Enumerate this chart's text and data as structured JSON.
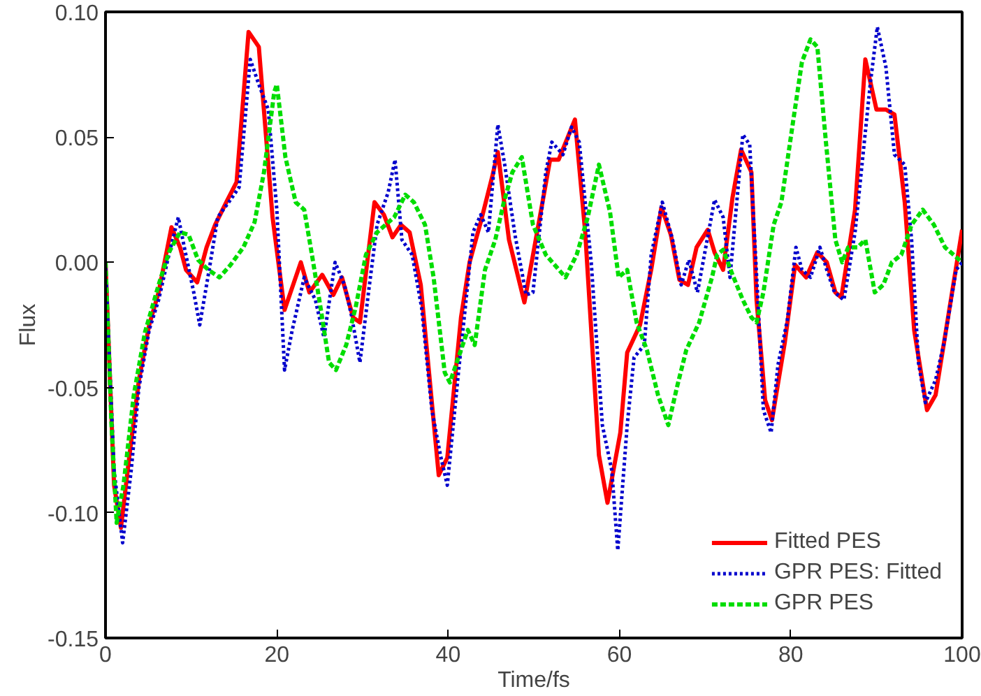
{
  "chart_data": {
    "type": "line",
    "xlabel": "Time/fs",
    "ylabel": "Flux",
    "xlim": [
      0,
      100
    ],
    "xticks": [
      0,
      20,
      40,
      60,
      80,
      100
    ],
    "ylim": [
      -0.15,
      0.1
    ],
    "yticks": [
      {
        "value": -0.15,
        "label": "-0.15"
      },
      {
        "value": -0.1,
        "label": "-0.10"
      },
      {
        "value": -0.05,
        "label": "-0.05"
      },
      {
        "value": 0,
        "label": "0.00"
      },
      {
        "value": 0.05,
        "label": "0.05"
      },
      {
        "value": 0.1,
        "label": "0.10"
      }
    ],
    "grid": false,
    "legend": "bottom right",
    "marker": "none",
    "series": [
      {
        "name": "Fitted PES",
        "color": "#ff0000",
        "line_style": "solid",
        "x": [
          0,
          1.0,
          1.8,
          2.8,
          3.9,
          5.1,
          6.2,
          7.7,
          8.7,
          9.4,
          10.7,
          11.8,
          12.8,
          14.1,
          15.3,
          16.7,
          17.9,
          19.5,
          20.9,
          22.8,
          23.8,
          25.3,
          26.6,
          27.6,
          28.9,
          29.7,
          31.4,
          32.5,
          33.5,
          34.5,
          35.5,
          36.8,
          38.9,
          39.9,
          41.5,
          42.5,
          43.8,
          45.2,
          45.8,
          47.1,
          48.9,
          50.7,
          51.9,
          52.9,
          54.8,
          56.0,
          57.6,
          58.6,
          60.1,
          60.9,
          62.4,
          63.7,
          64.9,
          66.0,
          67.0,
          68.0,
          69.0,
          70.3,
          71.1,
          72.1,
          73.2,
          74.2,
          75.4,
          76.0,
          77.0,
          77.8,
          79.3,
          80.5,
          81.8,
          83.1,
          84.2,
          85.2,
          85.9,
          87.5,
          88.7,
          90.0,
          91.1,
          92.1,
          93.3,
          94.4,
          95.9,
          96.9,
          100
        ],
        "values": [
          0.0,
          -0.089,
          -0.106,
          -0.077,
          -0.047,
          -0.025,
          -0.012,
          0.014,
          0.006,
          -0.003,
          -0.008,
          0.006,
          0.015,
          0.024,
          0.032,
          0.092,
          0.086,
          0.018,
          -0.019,
          0.0,
          -0.012,
          -0.005,
          -0.013,
          -0.006,
          -0.022,
          -0.024,
          0.024,
          0.019,
          0.01,
          0.015,
          0.012,
          -0.009,
          -0.085,
          -0.078,
          -0.022,
          0.0,
          0.016,
          0.035,
          0.044,
          0.009,
          -0.016,
          0.018,
          0.041,
          0.041,
          0.057,
          0.012,
          -0.077,
          -0.096,
          -0.068,
          -0.036,
          -0.025,
          -0.003,
          0.022,
          0.011,
          -0.007,
          -0.009,
          0.006,
          0.013,
          0.004,
          -0.003,
          0.026,
          0.045,
          0.036,
          -0.015,
          -0.055,
          -0.063,
          -0.032,
          -0.001,
          -0.006,
          0.004,
          0.0,
          -0.012,
          -0.014,
          0.021,
          0.081,
          0.061,
          0.061,
          0.059,
          0.024,
          -0.027,
          -0.059,
          -0.053,
          0.013
        ]
      },
      {
        "name": "GPR PES: Fitted",
        "color": "#0000cc",
        "line_style": "dotted",
        "x": [
          0,
          1.0,
          2.0,
          3.0,
          3.9,
          5.1,
          6.2,
          7.4,
          8.5,
          9.2,
          10.3,
          11.0,
          12.1,
          13.1,
          14.6,
          15.6,
          16.9,
          17.9,
          19.0,
          20.0,
          20.9,
          21.8,
          23.2,
          24.5,
          25.5,
          26.8,
          27.9,
          28.7,
          29.7,
          30.7,
          31.7,
          33.0,
          33.8,
          34.6,
          35.8,
          36.9,
          38.1,
          39.1,
          39.9,
          41.2,
          42.0,
          42.9,
          43.8,
          44.7,
          45.8,
          46.6,
          47.8,
          49.1,
          49.9,
          51.4,
          52.1,
          53.4,
          54.4,
          55.3,
          56.7,
          58.0,
          59.1,
          59.8,
          60.9,
          61.7,
          62.9,
          63.7,
          65.0,
          66.2,
          67.2,
          68.1,
          69.1,
          70.4,
          71.1,
          72.1,
          72.9,
          74.4,
          75.2,
          76.2,
          76.8,
          77.7,
          78.5,
          79.6,
          80.6,
          81.3,
          82.3,
          83.4,
          84.2,
          85.1,
          86.2,
          87.5,
          89.3,
          90.1,
          91.1,
          92.1,
          93.3,
          94.1,
          94.9,
          95.7,
          96.9,
          97.9,
          99.3,
          100
        ],
        "values": [
          0.0,
          -0.083,
          -0.112,
          -0.083,
          -0.05,
          -0.027,
          -0.015,
          0.003,
          0.018,
          0.006,
          -0.012,
          -0.025,
          -0.003,
          0.018,
          0.025,
          0.03,
          0.081,
          0.071,
          0.061,
          0.021,
          -0.043,
          -0.027,
          -0.006,
          -0.015,
          -0.03,
          0.0,
          -0.009,
          -0.021,
          -0.04,
          -0.012,
          0.015,
          0.028,
          0.041,
          0.009,
          0.003,
          -0.018,
          -0.059,
          -0.077,
          -0.089,
          -0.044,
          -0.018,
          0.012,
          0.019,
          0.012,
          0.055,
          0.039,
          0.011,
          -0.013,
          -0.012,
          0.036,
          0.048,
          0.043,
          0.054,
          0.048,
          0.0,
          -0.065,
          -0.083,
          -0.115,
          -0.065,
          -0.038,
          -0.033,
          0.003,
          0.024,
          0.009,
          -0.009,
          0.001,
          -0.012,
          0.012,
          0.025,
          0.018,
          -0.006,
          0.051,
          0.047,
          -0.018,
          -0.059,
          -0.068,
          -0.041,
          -0.023,
          0.006,
          -0.003,
          -0.006,
          0.006,
          -0.003,
          -0.012,
          -0.015,
          0.012,
          0.072,
          0.094,
          0.078,
          0.043,
          0.039,
          0.009,
          -0.04,
          -0.056,
          -0.047,
          -0.032,
          -0.003,
          0.0
        ]
      },
      {
        "name": "GPR PES",
        "color": "#00dd00",
        "line_style": "dashed",
        "x": [
          0,
          0.7,
          1.3,
          2.1,
          3.3,
          4.6,
          6.2,
          7.4,
          8.7,
          9.7,
          10.8,
          12.0,
          13.3,
          14.6,
          16.1,
          17.4,
          18.5,
          19.7,
          20.0,
          21.0,
          22.2,
          23.2,
          24.1,
          25.1,
          26.1,
          26.9,
          28.1,
          29.2,
          30.4,
          31.7,
          33.7,
          35.0,
          36.0,
          37.3,
          38.3,
          39.6,
          40.2,
          41.2,
          42.3,
          43.1,
          44.3,
          45.5,
          46.5,
          47.5,
          48.6,
          49.9,
          51.4,
          53.7,
          55.0,
          56.3,
          57.6,
          58.9,
          59.9,
          60.9,
          62.0,
          63.2,
          64.5,
          65.7,
          66.7,
          67.8,
          69.3,
          70.8,
          71.4,
          72.1,
          73.2,
          74.4,
          75.4,
          76.0,
          76.8,
          78.0,
          78.9,
          80.3,
          81.3,
          82.3,
          83.1,
          84.1,
          85.2,
          86.0,
          86.7,
          87.8,
          88.7,
          89.8,
          90.8,
          91.8,
          92.9,
          94.1,
          95.4,
          96.7,
          98.0,
          100
        ],
        "values": [
          0.0,
          -0.065,
          -0.104,
          -0.089,
          -0.053,
          -0.028,
          -0.009,
          0.004,
          0.012,
          0.011,
          0.001,
          -0.003,
          -0.006,
          -0.001,
          0.006,
          0.016,
          0.036,
          0.068,
          0.071,
          0.042,
          0.024,
          0.021,
          0.003,
          -0.018,
          -0.04,
          -0.043,
          -0.033,
          -0.018,
          0.003,
          0.012,
          0.018,
          0.027,
          0.024,
          0.015,
          -0.006,
          -0.044,
          -0.048,
          -0.038,
          -0.027,
          -0.033,
          -0.003,
          0.009,
          0.024,
          0.036,
          0.042,
          0.015,
          0.003,
          -0.006,
          0.003,
          0.018,
          0.039,
          0.02,
          -0.006,
          -0.003,
          -0.024,
          -0.035,
          -0.053,
          -0.065,
          -0.05,
          -0.035,
          -0.024,
          -0.006,
          0.003,
          0.005,
          -0.005,
          -0.015,
          -0.022,
          -0.024,
          -0.012,
          0.015,
          0.024,
          0.057,
          0.08,
          0.089,
          0.086,
          0.048,
          0.009,
          0.0,
          0.006,
          0.006,
          0.009,
          -0.012,
          -0.009,
          0.0,
          0.003,
          0.015,
          0.021,
          0.015,
          0.006,
          0.0
        ]
      }
    ]
  }
}
